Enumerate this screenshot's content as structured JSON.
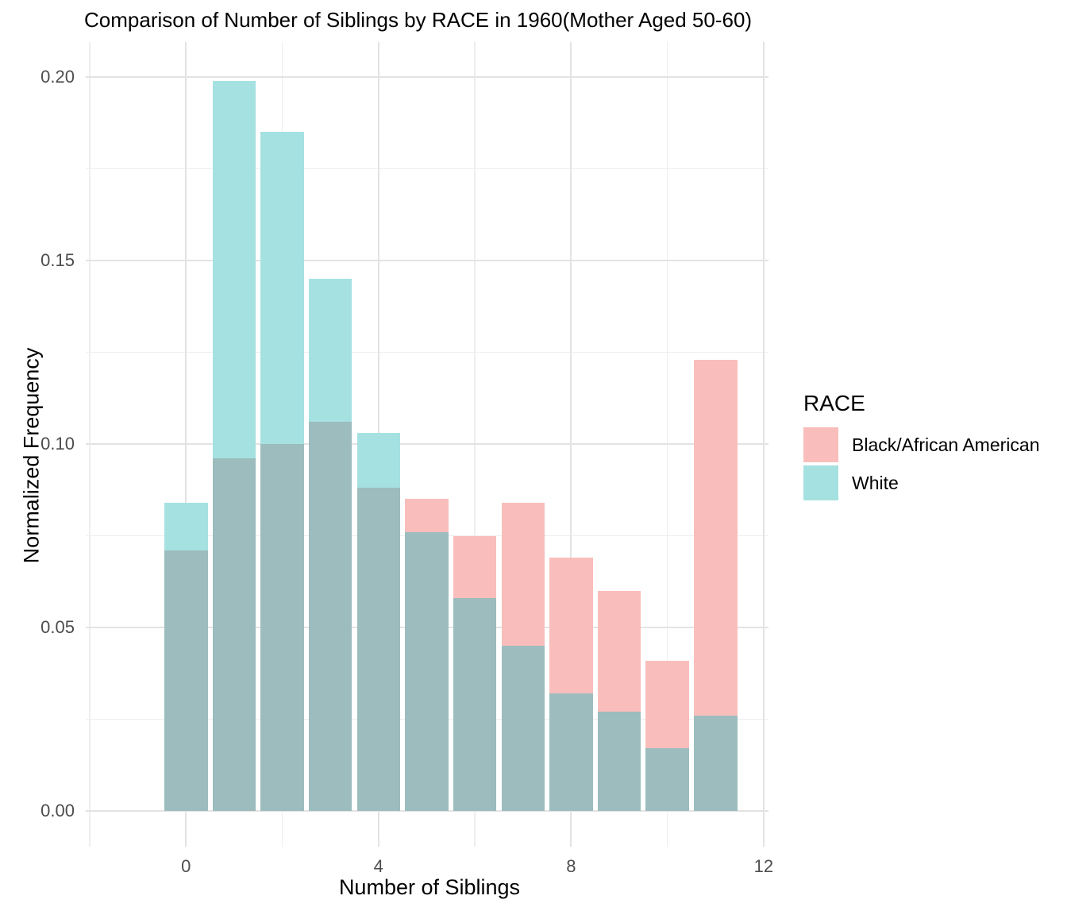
{
  "chart_data": {
    "type": "bar",
    "subtype": "overlaid-histogram",
    "title": "Comparison of Number of Siblings by RACE in 1960(Mother Aged 50-60)",
    "xlabel": "Number of Siblings",
    "ylabel": "Normalized Frequency",
    "x": [
      0,
      1,
      2,
      3,
      4,
      5,
      6,
      7,
      8,
      9,
      10,
      11
    ],
    "series": [
      {
        "name": "Black/African American",
        "color": "#F9BEBB",
        "values": [
          0.071,
          0.096,
          0.1,
          0.106,
          0.088,
          0.085,
          0.075,
          0.084,
          0.069,
          0.06,
          0.041,
          0.123
        ]
      },
      {
        "name": "White",
        "color": "#A6E1E1",
        "values": [
          0.084,
          0.199,
          0.185,
          0.145,
          0.103,
          0.076,
          0.058,
          0.045,
          0.032,
          0.027,
          0.017,
          0.026
        ]
      }
    ],
    "overlap_color": "#9DBCBD",
    "bar_width": 0.9,
    "xlim": [
      -2.083,
      12.1
    ],
    "ylim": [
      -0.00974,
      0.2095
    ],
    "x_ticks": {
      "major": [
        0,
        4,
        8,
        12
      ],
      "minor": [
        -2,
        2,
        6,
        10
      ]
    },
    "y_ticks": {
      "major": [
        0,
        0.05,
        0.1,
        0.15,
        0.2
      ],
      "minor": [
        0.025,
        0.075,
        0.125,
        0.175
      ]
    },
    "x_tick_labels": [
      "0",
      "4",
      "8",
      "12"
    ],
    "y_tick_labels": [
      "0.00",
      "0.05",
      "0.10",
      "0.15",
      "0.20"
    ],
    "grid": "on",
    "legend": {
      "title": "RACE",
      "position": "right",
      "entries": [
        {
          "label": "Black/African American",
          "color": "#F9BEBB"
        },
        {
          "label": "White",
          "color": "#A6E1E1"
        }
      ]
    }
  }
}
